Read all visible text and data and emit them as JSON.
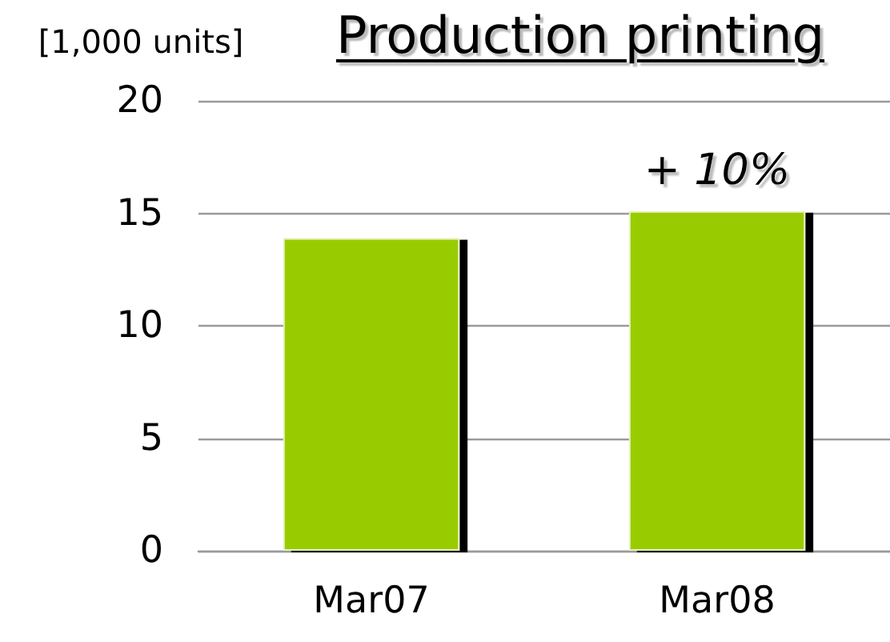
{
  "chart_data": {
    "type": "bar",
    "title": "Production printing",
    "ylabel": "[1,000 units]",
    "categories": [
      "Mar07",
      "Mar08"
    ],
    "values": [
      13.9,
      15.1
    ],
    "color": "#99cc00",
    "ylim": [
      0,
      20
    ],
    "yticks": [
      0,
      5,
      10,
      15,
      20
    ],
    "grid": "y",
    "annotations": [
      {
        "text": "+ 10%",
        "x": "Mar08",
        "y": 15.1
      }
    ]
  }
}
